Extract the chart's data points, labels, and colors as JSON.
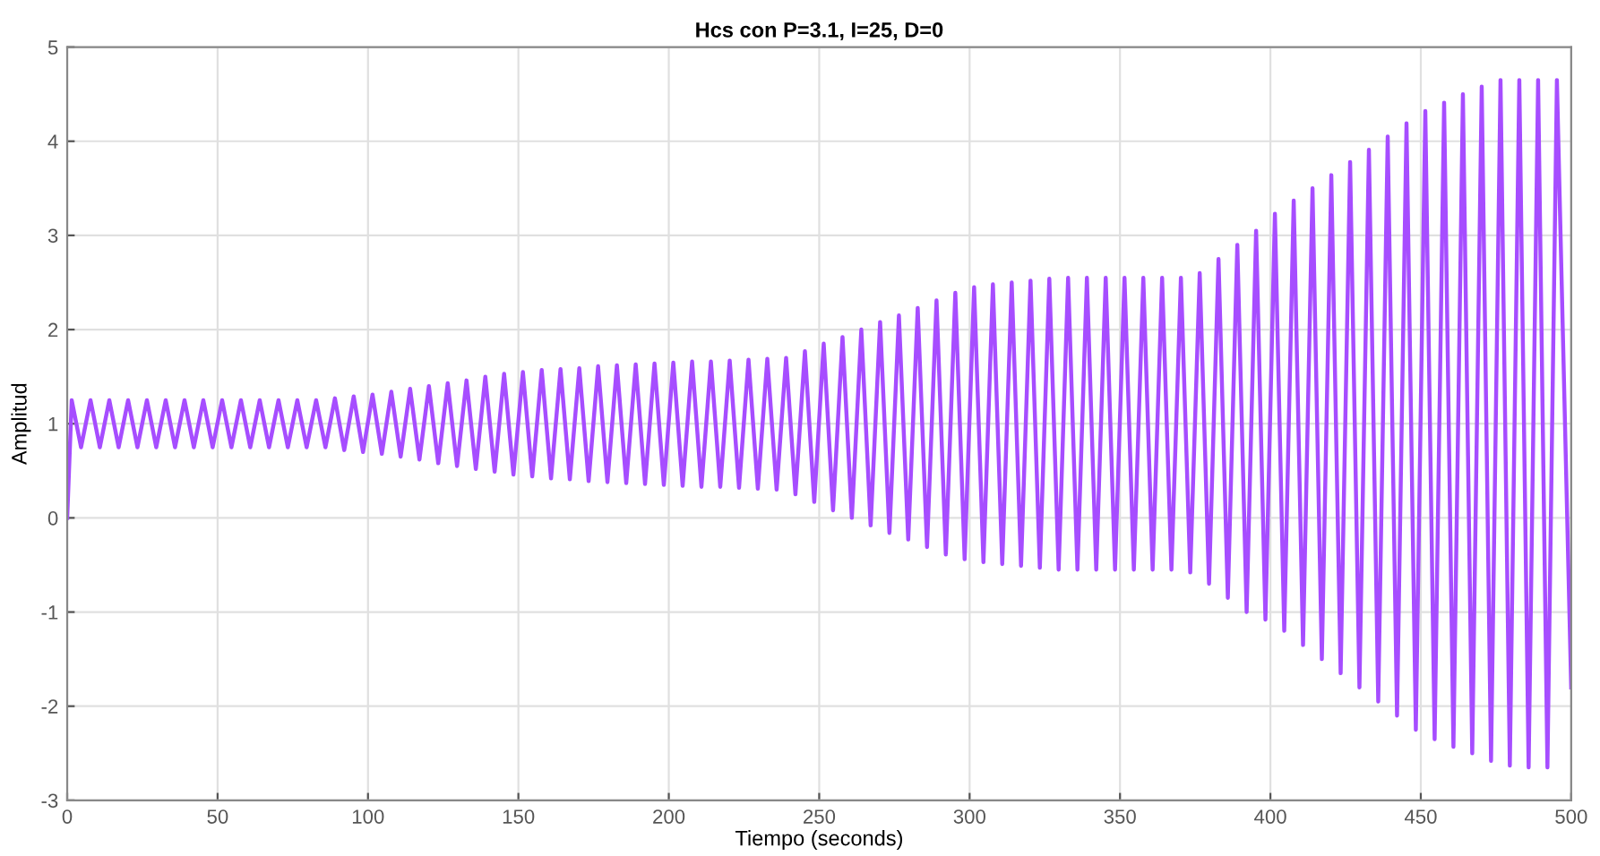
{
  "chart_data": {
    "type": "line",
    "title": "Hcs con P=3.1, I=25, D=0",
    "xlabel": "Tiempo (seconds)",
    "ylabel": "Amplitud",
    "xlim": [
      0,
      500
    ],
    "xticks": [
      0,
      50,
      100,
      150,
      200,
      250,
      300,
      350,
      400,
      450,
      500
    ],
    "ylim": [
      -3,
      5
    ],
    "yticks": [
      -3,
      -2,
      -1,
      0,
      1,
      2,
      3,
      4,
      5
    ],
    "grid": true,
    "marker": "none",
    "line_style": "solid",
    "series": [
      {
        "color": "#a64dff",
        "x": [
          0,
          1.5,
          4.6,
          7.75,
          10.85,
          14,
          17.1,
          20.25,
          23.35,
          26.5,
          29.6,
          32.75,
          35.85,
          39,
          42.1,
          45.25,
          48.35,
          51.5,
          54.6,
          57.75,
          60.85,
          64,
          67.1,
          70.25,
          73.35,
          76.5,
          79.6,
          82.75,
          85.85,
          89,
          92.1,
          95.25,
          98.35,
          101.5,
          104.6,
          107.75,
          110.85,
          114,
          117.1,
          120.25,
          123.35,
          126.5,
          129.6,
          132.75,
          135.85,
          139,
          142.1,
          145.25,
          148.35,
          151.5,
          154.6,
          157.75,
          160.85,
          164,
          167.1,
          170.25,
          173.35,
          176.5,
          179.6,
          182.75,
          185.85,
          189,
          192.1,
          195.25,
          198.35,
          201.5,
          204.6,
          207.75,
          210.85,
          214,
          217.1,
          220.25,
          223.35,
          226.5,
          229.6,
          232.75,
          235.85,
          239,
          242.1,
          245.25,
          248.35,
          251.5,
          254.6,
          257.75,
          260.85,
          264,
          267.1,
          270.25,
          273.35,
          276.5,
          279.6,
          282.75,
          285.85,
          289,
          292.1,
          295.25,
          298.35,
          301.5,
          304.6,
          307.75,
          310.85,
          314,
          317.1,
          320.25,
          323.35,
          326.5,
          329.6,
          332.75,
          335.85,
          339,
          342.1,
          345.25,
          348.35,
          351.5,
          354.6,
          357.75,
          360.85,
          364,
          367.1,
          370.25,
          373.35,
          376.5,
          379.6,
          382.75,
          385.85,
          389,
          392.1,
          395.25,
          398.35,
          401.5,
          404.6,
          407.75,
          410.85,
          414,
          417.1,
          420.25,
          423.35,
          426.5,
          429.6,
          432.75,
          435.85,
          439,
          442.1,
          445.25,
          448.35,
          451.5,
          454.6,
          457.75,
          460.85,
          464,
          467.1,
          470.25,
          473.35,
          476.5,
          479.6,
          482.75,
          485.85,
          489,
          492.1,
          495.25,
          500
        ],
        "values": [
          0,
          1.25,
          0.75,
          1.25,
          0.75,
          1.25,
          0.75,
          1.25,
          0.75,
          1.25,
          0.75,
          1.25,
          0.75,
          1.25,
          0.75,
          1.25,
          0.75,
          1.25,
          0.75,
          1.25,
          0.75,
          1.25,
          0.75,
          1.25,
          0.75,
          1.25,
          0.75,
          1.25,
          0.75,
          1.27,
          0.72,
          1.29,
          0.7,
          1.31,
          0.68,
          1.34,
          0.65,
          1.37,
          0.62,
          1.4,
          0.58,
          1.43,
          0.55,
          1.46,
          0.52,
          1.5,
          0.49,
          1.53,
          0.46,
          1.55,
          0.44,
          1.57,
          0.42,
          1.58,
          0.41,
          1.59,
          0.39,
          1.61,
          0.38,
          1.62,
          0.37,
          1.63,
          0.36,
          1.64,
          0.35,
          1.65,
          0.34,
          1.66,
          0.33,
          1.66,
          0.33,
          1.67,
          0.32,
          1.68,
          0.31,
          1.69,
          0.3,
          1.7,
          0.25,
          1.77,
          0.17,
          1.85,
          0.08,
          1.92,
          0.0,
          2.0,
          -0.08,
          2.08,
          -0.16,
          2.15,
          -0.23,
          2.23,
          -0.31,
          2.31,
          -0.39,
          2.39,
          -0.44,
          2.45,
          -0.47,
          2.48,
          -0.49,
          2.5,
          -0.51,
          2.52,
          -0.53,
          2.54,
          -0.55,
          2.55,
          -0.55,
          2.55,
          -0.55,
          2.55,
          -0.55,
          2.55,
          -0.55,
          2.55,
          -0.55,
          2.55,
          -0.55,
          2.55,
          -0.58,
          2.6,
          -0.7,
          2.75,
          -0.85,
          2.9,
          -1.0,
          3.05,
          -1.08,
          3.23,
          -1.2,
          3.37,
          -1.35,
          3.5,
          -1.5,
          3.64,
          -1.65,
          3.78,
          -1.8,
          3.91,
          -1.95,
          4.05,
          -2.1,
          4.19,
          -2.25,
          4.32,
          -2.35,
          4.41,
          -2.43,
          4.5,
          -2.5,
          4.58,
          -2.58,
          4.65,
          -2.63,
          4.65,
          -2.65,
          4.65,
          -2.65,
          4.65,
          -1.8
        ]
      }
    ]
  }
}
